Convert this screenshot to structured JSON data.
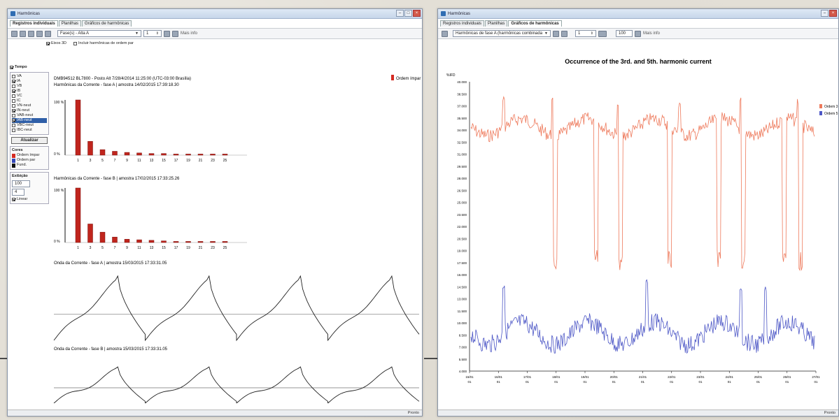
{
  "left_window": {
    "title": "Harmônicas",
    "tabs": [
      "Registros individuais",
      "Planilhas",
      "Gráficos de harmônicas"
    ],
    "toolbar": {
      "select_value": "Fase(s) - Alta A",
      "spinner_value": "1",
      "extra_text": "Mais info"
    },
    "options": {
      "3d_label": "Eixos 3D",
      "odd_only_label": "Incluir harmônicas de ordem par"
    },
    "sidebar": {
      "group_title": "Tempo",
      "items": [
        {
          "label": "VA",
          "checked": false
        },
        {
          "label": "IA",
          "checked": true
        },
        {
          "label": "VB",
          "checked": false
        },
        {
          "label": "IB",
          "checked": true
        },
        {
          "label": "VC",
          "checked": false
        },
        {
          "label": "IC",
          "checked": false
        },
        {
          "label": "VN-neut",
          "checked": false
        },
        {
          "label": "IN-neut",
          "checked": true
        },
        {
          "label": "VAB-neut",
          "checked": false
        },
        {
          "label": "IAB-neut",
          "checked": true,
          "selected": true
        },
        {
          "label": "VBC-neut",
          "checked": false
        },
        {
          "label": "IBC-neut",
          "checked": false
        }
      ],
      "apply_button": "Atualizar",
      "color_title": "Cores",
      "colors": [
        {
          "label": "Ordem ímpar",
          "color": "#d42b22"
        },
        {
          "label": "Ordem par",
          "color": "#3548b8"
        },
        {
          "label": "Fund.",
          "color": "#111111"
        }
      ],
      "zoom_title": "Exibição",
      "zoom_value": "100",
      "step_value": "4",
      "check_label": "Linear"
    },
    "legend_label": "Ordem ímpar",
    "header_line": "DMB94512 BL7800 - Posto Alt 7/28/4/2014 11:25:00 (UTC-03:00 Brasília)",
    "bar_chart_1_title": "Harmônicas da Corrente - fase A | amostra 14/02/2015 17:39:18.30",
    "bar_chart_2_title": "Harmônicas da Corrente - fase B | amostra 17/02/2015 17:33:25.26",
    "bar_y_top": "100 %",
    "bar_y_bottom": "0 %",
    "wave_1_title": "Onda da Corrente - fase A | amostra 15/03/2015 17:33:31.05",
    "wave_2_title": "Onda da Corrente - fase B | amostra 15/03/2015 17:33:31.05",
    "status": "Pronto"
  },
  "right_window": {
    "title": "Harmônicas",
    "tabs": [
      "Registros individuais",
      "Planilhas",
      "Gráficos de harmônicas"
    ],
    "toolbar": {
      "select_value": "Harmônicas de fase A (harmônicas combinadas)",
      "spinner_value": "1",
      "zoom_value": "100",
      "extra_text": "Mais info"
    },
    "status": "Pronto"
  },
  "chart_data": [
    {
      "type": "bar",
      "title": "Harmônicas da Corrente - fase A | amostra 14/02/2015 17:39:18.30",
      "categories": [
        "1",
        "3",
        "5",
        "7",
        "9",
        "11",
        "13",
        "15",
        "17",
        "19",
        "21",
        "23",
        "25"
      ],
      "values": [
        100,
        25,
        10,
        7,
        5,
        4,
        3,
        3,
        2,
        2,
        2,
        2,
        2
      ],
      "ylim": [
        0,
        100
      ]
    },
    {
      "type": "bar",
      "title": "Harmônicas da Corrente - fase B | amostra 17/02/2015 17:33:25.26",
      "categories": [
        "1",
        "3",
        "5",
        "7",
        "9",
        "11",
        "13",
        "15",
        "17",
        "19",
        "21",
        "23",
        "25"
      ],
      "values": [
        100,
        34,
        19,
        10,
        6,
        5,
        4,
        3,
        2,
        2,
        2,
        2,
        2
      ],
      "ylim": [
        0,
        100
      ]
    },
    {
      "type": "line",
      "title": "Onda da Corrente - fase A | amostra 15/03/2015 17:33:31.05",
      "periods": 4
    },
    {
      "type": "line",
      "title": "Onda da Corrente - fase B | amostra 15/03/2015 17:33:31.05",
      "periods": 4
    },
    {
      "type": "line",
      "title": "Occurrence of the 3rd. and 5th. harmonic current",
      "ylabel": "%IFD",
      "y_ticks": [
        "40.000",
        "38.500",
        "37.000",
        "35.500",
        "34.000",
        "32.500",
        "31.000",
        "29.500",
        "28.000",
        "26.500",
        "25.000",
        "23.500",
        "22.000",
        "20.500",
        "19.000",
        "17.500",
        "16.000",
        "14.500",
        "13.000",
        "11.500",
        "10.000",
        "8.500",
        "7.000",
        "5.500",
        "4.000"
      ],
      "x_ticks": [
        [
          "15/01",
          "01"
        ],
        [
          "16/01",
          "01"
        ],
        [
          "17/01",
          "01"
        ],
        [
          "18/01",
          "01"
        ],
        [
          "19/01",
          "01"
        ],
        [
          "20/01",
          "01"
        ],
        [
          "21/01",
          "01"
        ],
        [
          "22/01",
          "01"
        ],
        [
          "23/01",
          "01"
        ],
        [
          "24/01",
          "01"
        ],
        [
          "25/01",
          "01"
        ],
        [
          "26/01",
          "01"
        ],
        [
          "27/01",
          "01"
        ]
      ],
      "series": [
        {
          "name": "Ordem 3",
          "color": "#ee7a5c"
        },
        {
          "name": "Ordem 5",
          "color": "#4d57c6"
        }
      ]
    }
  ]
}
